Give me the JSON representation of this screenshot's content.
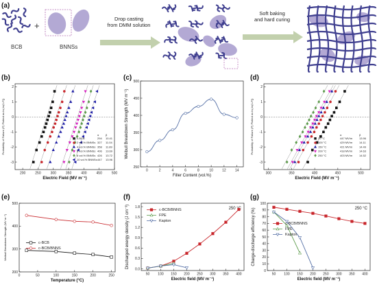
{
  "colors": {
    "purple": "#3f3f8f",
    "lavender": "#b3a9d4",
    "arrow": "#8fa96a",
    "red": "#c8252a",
    "green": "#5b9a49",
    "blue": "#536ea5",
    "black": "#111111",
    "magenta": "#d51fbe",
    "darkblue": "#1b1ba6",
    "axis": "#222222"
  },
  "schematic": {
    "label": "(a)",
    "bcb_label": "BCB",
    "plus": "+",
    "bnns_label": "BNNSs",
    "step1": [
      "Drop casting",
      "from DMM solution"
    ],
    "step2": [
      "Soft baking",
      "and hard curing"
    ]
  },
  "panels": {
    "b": {
      "label": "(b)",
      "ylabel": "Probability of Failure (P) Plotted as ln(-ln(1-P))",
      "xlabel": "Electric Field (MV m⁻¹)",
      "xticks": [
        "200",
        "250",
        "300",
        "350",
        "400",
        "450",
        "500"
      ],
      "yticks": [
        "2",
        "1",
        "0",
        "-1",
        "-2",
        "-3"
      ],
      "header": [
        "α",
        "β"
      ],
      "legend": [
        {
          "name": "c-BCB",
          "alpha": "294",
          "beta": "10.41",
          "color": "#111111",
          "marker": "square"
        },
        {
          "name": "2 vol.% BNNSs",
          "alpha": "327",
          "beta": "11.04",
          "color": "#c8252a",
          "marker": "circle"
        },
        {
          "name": "4 vol.% BNNSs",
          "alpha": "358",
          "beta": "11.89",
          "color": "#1b1ba6",
          "marker": "triangle"
        },
        {
          "name": "6 vol.% BNNSs",
          "alpha": "406",
          "beta": "13.69",
          "color": "#d51fbe",
          "marker": "tri-down"
        },
        {
          "name": "8 vol.% BNNSs",
          "alpha": "426",
          "beta": "13.72",
          "color": "#5b9a49",
          "marker": "diamond"
        },
        {
          "name": "10 vol.% BNNSs",
          "alpha": "447",
          "beta": "13.96",
          "color": "#1b1ba6",
          "marker": "tri-left"
        }
      ]
    },
    "c": {
      "label": "(c)",
      "ylabel": "Weibull Breakdown Strength (MV m⁻¹)",
      "xlabel": "Filler Content (vol.%)",
      "xticks": [
        "0",
        "2",
        "4",
        "6",
        "8",
        "10",
        "12",
        "14"
      ],
      "yticks": [
        "250",
        "300",
        "350",
        "400",
        "450",
        "500"
      ]
    },
    "d": {
      "label": "(d)",
      "ylabel": "Probability of Failure (P) Plotted as ln(-ln(1-P))",
      "xlabel": "Electric Field (MV m⁻¹)",
      "xticks": [
        "300",
        "350",
        "400",
        "450",
        "500"
      ],
      "yticks": [
        "2",
        "1",
        "0",
        "-1",
        "-2",
        "-3"
      ],
      "header": [
        "α",
        "β"
      ],
      "legend": [
        {
          "name": "20 °C",
          "alpha": "447 MV/m",
          "beta": "13.96",
          "color": "#111111",
          "marker": "square"
        },
        {
          "name": "100 °C",
          "alpha": "429 MV/m",
          "beta": "14.11",
          "color": "#c8252a",
          "marker": "circle"
        },
        {
          "name": "150 °C",
          "alpha": "421 MV/m",
          "beta": "14.49",
          "color": "#1b1ba6",
          "marker": "triangle"
        },
        {
          "name": "200 °C",
          "alpha": "418 MV/m",
          "beta": "14.63",
          "color": "#d51fbe",
          "marker": "tri-down"
        },
        {
          "name": "250 °C",
          "alpha": "403 MV/m",
          "beta": "14.52",
          "color": "#5b9a49",
          "marker": "diamond"
        }
      ]
    },
    "e": {
      "label": "(e)",
      "ylabel": "Weibull Breakdown Strength (MV m⁻¹)",
      "xlabel": "Temperature (°C)",
      "xticks": [
        "0",
        "50",
        "100",
        "150",
        "200",
        "250"
      ],
      "yticks": [
        "200",
        "300",
        "400",
        "500"
      ],
      "legend": [
        "c-BCB",
        "c-BCB/BNNS"
      ]
    },
    "f": {
      "label": "(f)",
      "ylabel": "Discharged energy density (J cm⁻³)",
      "xlabel": "Electric field (MV m⁻¹)",
      "temp": "250 °C",
      "xticks": [
        "50",
        "100",
        "150",
        "200",
        "250",
        "300",
        "350",
        "400"
      ],
      "yticks": [
        "0.0",
        "0.3",
        "0.6",
        "0.9",
        "1.2",
        "1.5",
        "1.8"
      ],
      "legend": [
        "c-BCB/BNNS",
        "FPE",
        "Kapton"
      ]
    },
    "g": {
      "label": "(g)",
      "ylabel": "Charge-discharge efficiency (%)",
      "xlabel": "Electric field (MV m⁻¹)",
      "temp": "250 °C",
      "xticks": [
        "50",
        "100",
        "150",
        "200",
        "250",
        "300",
        "350",
        "400"
      ],
      "yticks": [
        "0",
        "10",
        "20",
        "30",
        "40",
        "50",
        "60",
        "70",
        "80",
        "90",
        "100"
      ],
      "legend": [
        "c-BCB/BNNS",
        "FPE",
        "Kapton"
      ]
    }
  },
  "chart_data": [
    {
      "panel": "b",
      "type": "scatter",
      "xlabel": "Electric Field (MV m⁻¹)",
      "ylabel": "Probability of Failure (P) Plotted as ln(-ln(1-P))",
      "xlim": [
        175,
        500
      ],
      "ylim": [
        -3.5,
        2.2
      ],
      "series": [
        {
          "name": "c-BCB",
          "x": [
            235,
            245,
            255,
            262,
            268,
            273,
            277,
            281,
            285,
            289,
            293,
            298,
            304
          ],
          "y": [
            -3.0,
            -2.2,
            -1.7,
            -1.3,
            -1.0,
            -0.7,
            -0.45,
            -0.2,
            0.05,
            0.3,
            0.6,
            1.0,
            1.7
          ]
        },
        {
          "name": "2 vol.% BNNSs",
          "x": [
            262,
            272,
            282,
            290,
            296,
            301,
            306,
            310,
            314,
            318,
            323,
            329,
            336
          ],
          "y": [
            -3.0,
            -2.2,
            -1.7,
            -1.3,
            -1.0,
            -0.7,
            -0.45,
            -0.2,
            0.05,
            0.3,
            0.6,
            1.0,
            1.7
          ]
        },
        {
          "name": "4 vol.% BNNSs",
          "x": [
            290,
            300,
            310,
            318,
            324,
            329,
            334,
            338,
            342,
            346,
            351,
            357,
            364
          ],
          "y": [
            -3.0,
            -2.2,
            -1.7,
            -1.3,
            -1.0,
            -0.7,
            -0.45,
            -0.2,
            0.05,
            0.3,
            0.6,
            1.0,
            1.7
          ]
        },
        {
          "name": "6 vol.% BNNSs",
          "x": [
            335,
            345,
            354,
            362,
            368,
            373,
            377,
            381,
            385,
            389,
            393,
            399,
            405
          ],
          "y": [
            -3.0,
            -2.2,
            -1.7,
            -1.3,
            -1.0,
            -0.7,
            -0.45,
            -0.2,
            0.05,
            0.3,
            0.6,
            1.0,
            1.7
          ]
        },
        {
          "name": "8 vol.% BNNSs",
          "x": [
            352,
            362,
            371,
            378,
            384,
            389,
            393,
            397,
            401,
            405,
            410,
            416,
            423
          ],
          "y": [
            -3.0,
            -2.2,
            -1.7,
            -1.3,
            -1.0,
            -0.7,
            -0.45,
            -0.2,
            0.05,
            0.3,
            0.6,
            1.0,
            1.7
          ]
        },
        {
          "name": "10 vol.% BNNSs",
          "x": [
            372,
            382,
            391,
            398,
            404,
            409,
            413,
            417,
            421,
            425,
            430,
            436,
            443
          ],
          "y": [
            -3.0,
            -2.2,
            -1.7,
            -1.3,
            -1.0,
            -0.7,
            -0.45,
            -0.2,
            0.05,
            0.3,
            0.6,
            1.0,
            1.7
          ]
        }
      ]
    },
    {
      "panel": "c",
      "type": "line",
      "xlabel": "Filler Content (vol.%)",
      "ylabel": "Weibull Breakdown Strength (MV m⁻¹)",
      "xlim": [
        -1,
        15
      ],
      "ylim": [
        250,
        500
      ],
      "x": [
        0,
        2,
        4,
        6,
        8,
        10,
        12,
        14
      ],
      "values": [
        294,
        327,
        358,
        406,
        426,
        447,
        403,
        393
      ]
    },
    {
      "panel": "d",
      "type": "scatter",
      "xlabel": "Electric Field (MV m⁻¹)",
      "ylabel": "Probability of Failure (P) Plotted as ln(-ln(1-P))",
      "xlim": [
        290,
        520
      ],
      "ylim": [
        -3.5,
        2.2
      ],
      "series": [
        {
          "name": "20 °C",
          "x": [
            385,
            395,
            405,
            413,
            419,
            424,
            429,
            433,
            437,
            442,
            447,
            454,
            465
          ],
          "y": [
            -3.0,
            -2.2,
            -1.7,
            -1.3,
            -1.0,
            -0.7,
            -0.45,
            -0.2,
            0.05,
            0.3,
            0.6,
            1.0,
            1.7
          ]
        },
        {
          "name": "100 °C",
          "x": [
            365,
            375,
            385,
            393,
            399,
            404,
            409,
            413,
            417,
            422,
            427,
            434,
            445
          ],
          "y": [
            -3.0,
            -2.2,
            -1.7,
            -1.3,
            -1.0,
            -0.7,
            -0.45,
            -0.2,
            0.05,
            0.3,
            0.6,
            1.0,
            1.7
          ]
        },
        {
          "name": "150 °C",
          "x": [
            357,
            367,
            377,
            385,
            391,
            396,
            401,
            405,
            409,
            414,
            419,
            426,
            437
          ],
          "y": [
            -3.0,
            -2.2,
            -1.7,
            -1.3,
            -1.0,
            -0.7,
            -0.45,
            -0.2,
            0.05,
            0.3,
            0.6,
            1.0,
            1.7
          ]
        },
        {
          "name": "200 °C",
          "x": [
            352,
            362,
            372,
            380,
            386,
            391,
            396,
            400,
            404,
            409,
            414,
            421,
            432
          ],
          "y": [
            -3.0,
            -2.2,
            -1.7,
            -1.3,
            -1.0,
            -0.7,
            -0.45,
            -0.2,
            0.05,
            0.3,
            0.6,
            1.0,
            1.7
          ]
        },
        {
          "name": "250 °C",
          "x": [
            340,
            350,
            360,
            368,
            374,
            379,
            384,
            388,
            392,
            397,
            402,
            409,
            420
          ],
          "y": [
            -3.0,
            -2.2,
            -1.7,
            -1.3,
            -1.0,
            -0.7,
            -0.45,
            -0.2,
            0.05,
            0.3,
            0.6,
            1.0,
            1.7
          ]
        }
      ]
    },
    {
      "panel": "e",
      "type": "line",
      "xlabel": "Temperature (°C)",
      "ylabel": "Weibull Breakdown Strength (MV m⁻¹)",
      "xlim": [
        0,
        260
      ],
      "ylim": [
        200,
        500
      ],
      "x": [
        20,
        100,
        150,
        200,
        250
      ],
      "series": [
        {
          "name": "c-BCB",
          "values": [
            294,
            289,
            282,
            276,
            265
          ]
        },
        {
          "name": "c-BCB/BNNS",
          "values": [
            447,
            429,
            421,
            418,
            403
          ]
        }
      ]
    },
    {
      "panel": "f",
      "type": "line",
      "xlabel": "Electric field (MV m⁻¹)",
      "ylabel": "Discharged energy density (J cm⁻³)",
      "xlim": [
        25,
        420
      ],
      "ylim": [
        -0.05,
        1.9
      ],
      "series": [
        {
          "name": "c-BCB/BNNS",
          "x": [
            50,
            100,
            150,
            200,
            250,
            300,
            350,
            400
          ],
          "values": [
            0.02,
            0.08,
            0.22,
            0.45,
            0.72,
            1.02,
            1.35,
            1.72
          ]
        },
        {
          "name": "FPE",
          "x": [
            50,
            100,
            150
          ],
          "values": [
            0.02,
            0.08,
            0.16
          ]
        },
        {
          "name": "Kapton",
          "x": [
            50,
            100,
            150,
            200
          ],
          "values": [
            0.02,
            0.08,
            0.12,
            0.03
          ]
        }
      ]
    },
    {
      "panel": "g",
      "type": "line",
      "xlabel": "Electric field (MV m⁻¹)",
      "ylabel": "Charge-discharge efficiency (%)",
      "xlim": [
        25,
        420
      ],
      "ylim": [
        0,
        100
      ],
      "series": [
        {
          "name": "c-BCB/BNNS",
          "x": [
            50,
            100,
            150,
            200,
            250,
            300,
            350,
            400
          ],
          "values": [
            94,
            91,
            88,
            85,
            81,
            77,
            73,
            70
          ]
        },
        {
          "name": "FPE",
          "x": [
            50,
            100,
            150
          ],
          "values": [
            87,
            67,
            26
          ]
        },
        {
          "name": "Kapton",
          "x": [
            50,
            100,
            150,
            200
          ],
          "values": [
            87,
            73,
            49,
            4
          ]
        }
      ]
    }
  ]
}
